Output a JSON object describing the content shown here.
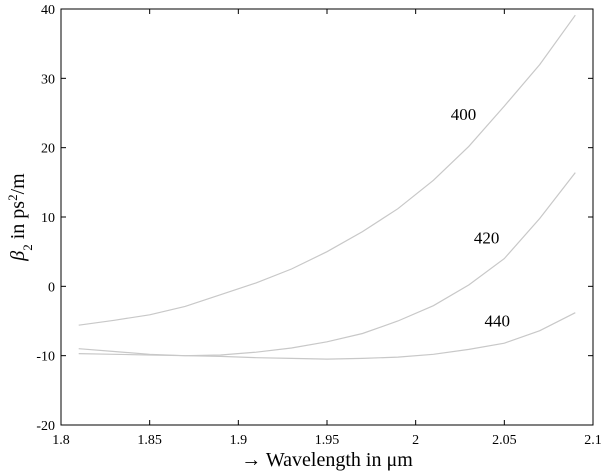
{
  "chart_data": {
    "type": "line",
    "title": "",
    "xlabel": "→ Wavelength in μm",
    "ylabel_symbol": "β",
    "ylabel_subscript": "2",
    "ylabel_mid": " in ps",
    "ylabel_superscript": "2",
    "ylabel_end": "/m",
    "xlim": [
      1.8,
      2.1
    ],
    "ylim": [
      -20,
      40
    ],
    "xticks": [
      1.8,
      1.85,
      1.9,
      1.95,
      2.0,
      2.05,
      2.1
    ],
    "xtick_labels": [
      "1.8",
      "1.85",
      "1.9",
      "1.95",
      "2",
      "2.05",
      "2.1"
    ],
    "yticks": [
      -20,
      -10,
      0,
      10,
      20,
      30,
      40
    ],
    "ytick_labels": [
      "-20",
      "-10",
      "0",
      "10",
      "20",
      "30",
      "40"
    ],
    "grid": false,
    "line_color": "#c8c8c8",
    "series": [
      {
        "label": "400",
        "x": [
          1.81,
          1.83,
          1.85,
          1.87,
          1.89,
          1.91,
          1.93,
          1.95,
          1.97,
          1.99,
          2.01,
          2.03,
          2.05,
          2.07,
          2.09
        ],
        "y": [
          -5.6,
          -4.9,
          -4.1,
          -2.9,
          -1.2,
          0.5,
          2.5,
          5.0,
          7.9,
          11.2,
          15.3,
          20.2,
          26.0,
          32.0,
          39.1
        ]
      },
      {
        "label": "420",
        "x": [
          1.81,
          1.83,
          1.85,
          1.87,
          1.89,
          1.91,
          1.93,
          1.95,
          1.97,
          1.99,
          2.01,
          2.03,
          2.05,
          2.07,
          2.09
        ],
        "y": [
          -9.0,
          -9.4,
          -9.8,
          -10.0,
          -9.9,
          -9.5,
          -8.9,
          -8.0,
          -6.8,
          -5.0,
          -2.8,
          0.2,
          4.0,
          9.8,
          16.4
        ]
      },
      {
        "label": "440",
        "x": [
          1.81,
          1.83,
          1.85,
          1.87,
          1.89,
          1.91,
          1.93,
          1.95,
          1.97,
          1.99,
          2.01,
          2.03,
          2.05,
          2.07,
          2.09
        ],
        "y": [
          -9.7,
          -9.8,
          -9.9,
          -10.0,
          -10.1,
          -10.3,
          -10.4,
          -10.5,
          -10.4,
          -10.2,
          -9.8,
          -9.1,
          -8.2,
          -6.4,
          -3.8
        ]
      }
    ],
    "annotations": [
      {
        "text": "400",
        "x": 2.027,
        "y": 24.0
      },
      {
        "text": "420",
        "x": 2.04,
        "y": 6.2
      },
      {
        "text": "440",
        "x": 2.046,
        "y": -5.8
      }
    ]
  }
}
